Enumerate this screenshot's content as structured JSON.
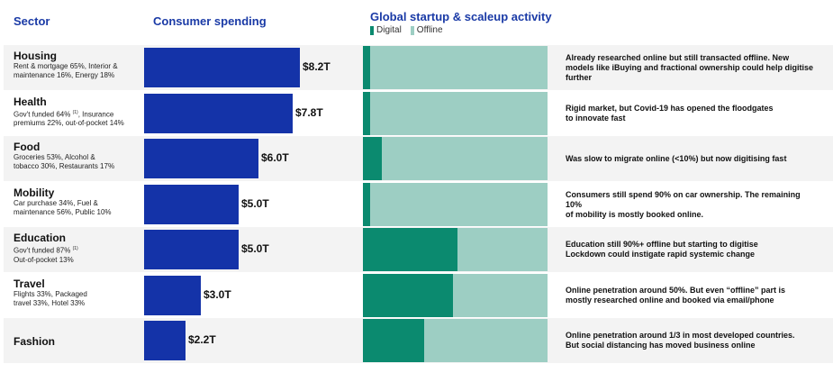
{
  "headers": {
    "sector": "Sector",
    "spending": "Consumer spending",
    "activity": "Global startup & scaleup activity"
  },
  "legend": {
    "digital": "Digital",
    "offline": "Offline",
    "digital_color": "#0b8a6f",
    "offline_color": "#9dcec3"
  },
  "chart_data": {
    "type": "bar",
    "title": "Consumer spending vs. Global startup & scaleup activity",
    "categories": [
      "Housing",
      "Health",
      "Food",
      "Mobility",
      "Education",
      "Travel",
      "Fashion"
    ],
    "series": [
      {
        "name": "Consumer spending ($T)",
        "values": [
          8.2,
          7.8,
          6.0,
          5.0,
          5.0,
          3.0,
          2.2
        ],
        "color": "#1433a8"
      },
      {
        "name": "Digital share of startup & scaleup activity (%)",
        "values": [
          4,
          4,
          10,
          4,
          51,
          49,
          33
        ],
        "color": "#0b8a6f"
      }
    ],
    "value_labels": [
      "$8.2T",
      "$7.8T",
      "$6.0T",
      "$5.0T",
      "$5.0T",
      "$3.0T",
      "$2.2T"
    ],
    "spend_max": 8.2,
    "pct_max": 100
  },
  "rows": [
    {
      "name": "Housing",
      "detail": [
        "Rent & mortgage 65%, Interior &",
        "maintenance 16%, Energy 18%"
      ],
      "comment": [
        "Already researched online but still transacted offline. New",
        "models like iBuying and fractional ownership could help digitise",
        "further"
      ]
    },
    {
      "name": "Health",
      "detail": [
        "Gov't funded 64% ",
        "premiums 22%, out-of-pocket 14%"
      ],
      "detail_note": "(1)",
      "detail_after_note": ", Insurance",
      "comment": [
        "Rigid market, but Covid-19 has opened the floodgates",
        "to innovate fast"
      ]
    },
    {
      "name": "Food",
      "detail": [
        "Groceries 53%, Alcohol &",
        "tobacco 30%, Restaurants 17%"
      ],
      "comment": [
        "Was slow to migrate online (<10%) but now digitising fast"
      ]
    },
    {
      "name": "Mobility",
      "detail": [
        "Car purchase 34%, Fuel &",
        "maintenance 56%, Public 10%"
      ],
      "comment": [
        "Consumers still spend 90% on car ownership. The remaining",
        "10%",
        "of mobility is mostly booked online."
      ]
    },
    {
      "name": "Education",
      "detail": [
        "Gov't funded 87% ",
        "Out-of-pocket 13%"
      ],
      "detail_note": "(1)",
      "comment": [
        "Education still 90%+ offline but starting to digitise",
        "Lockdown could instigate rapid systemic change"
      ]
    },
    {
      "name": "Travel",
      "detail": [
        "Flights 33%, Packaged",
        "travel 33%, Hotel 33%"
      ],
      "comment": [
        "Online penetration around 50%. But even “offline” part is",
        "mostly researched online and booked via email/phone"
      ]
    },
    {
      "name": "Fashion",
      "detail": [],
      "comment": [
        "Online penetration around 1/3 in most developed countries.",
        "But social distancing has moved business online"
      ]
    }
  ]
}
